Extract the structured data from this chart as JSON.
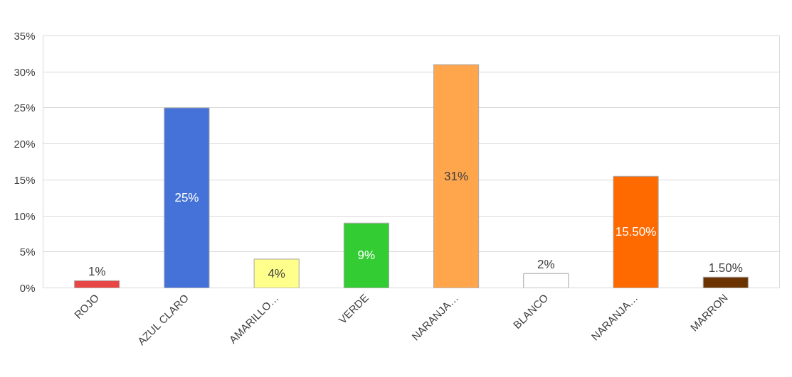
{
  "chart_data": {
    "type": "bar",
    "categories": [
      "ROJO",
      "AZUL CLARO",
      "AMARILLO…",
      "VERDE",
      "NARANJA…",
      "BLANCO",
      "NARANJA…",
      "MARRON"
    ],
    "values": [
      1,
      25,
      4,
      9,
      31,
      2,
      15.5,
      1.5
    ],
    "value_labels": [
      "1%",
      "25%",
      "4%",
      "9%",
      "31%",
      "2%",
      "15.50%",
      "1.50%"
    ],
    "colors": [
      "#e84545",
      "#4472d8",
      "#ffff8c",
      "#33cc33",
      "#ffa64d",
      "#ffffff",
      "#ff6a00",
      "#6b3300"
    ],
    "ylim": [
      0,
      35
    ],
    "yticks": [
      {
        "value": 0,
        "label": "0%"
      },
      {
        "value": 5,
        "label": "5%"
      },
      {
        "value": 10,
        "label": "10%"
      },
      {
        "value": 15,
        "label": "15%"
      },
      {
        "value": 20,
        "label": "20%"
      },
      {
        "value": 25,
        "label": "25%"
      },
      {
        "value": 30,
        "label": "30%"
      },
      {
        "value": 35,
        "label": "35%"
      }
    ],
    "grid": "y"
  }
}
